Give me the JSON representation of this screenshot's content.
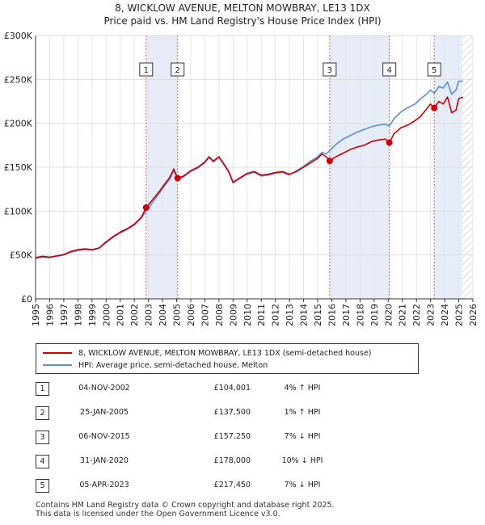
{
  "header": {
    "title_line1": "8, WICKLOW AVENUE, MELTON MOWBRAY, LE13 1DX",
    "title_line2": "Price paid vs. HM Land Registry's House Price Index (HPI)"
  },
  "chart_data": {
    "type": "line",
    "title": "8, WICKLOW AVENUE, MELTON MOWBRAY, LE13 1DX — Price paid vs. HM Land Registry's House Price Index (HPI)",
    "xlim": [
      1995,
      2026
    ],
    "ylim": [
      0,
      300000
    ],
    "x_ticks": [
      "1995",
      "1996",
      "1997",
      "1998",
      "1999",
      "2000",
      "2001",
      "2002",
      "2003",
      "2004",
      "2005",
      "2006",
      "2007",
      "2008",
      "2009",
      "2010",
      "2011",
      "2012",
      "2013",
      "2014",
      "2015",
      "2016",
      "2017",
      "2018",
      "2019",
      "2020",
      "2021",
      "2022",
      "2023",
      "2024",
      "2025",
      "2026"
    ],
    "y_ticks": [
      {
        "value": 0,
        "label": "£0"
      },
      {
        "value": 50000,
        "label": "£50K"
      },
      {
        "value": 100000,
        "label": "£100K"
      },
      {
        "value": 150000,
        "label": "£150K"
      },
      {
        "value": 200000,
        "label": "£200K"
      },
      {
        "value": 250000,
        "label": "£250K"
      },
      {
        "value": 300000,
        "label": "£300K"
      }
    ],
    "grid": true,
    "colors": {
      "price": "#cc0000",
      "hpi": "#5b8fd6",
      "band": "#e6ecf8",
      "vline": "#e06060",
      "future": "#dddddd"
    },
    "series": [
      {
        "name": "8, WICKLOW AVENUE, MELTON MOWBRAY, LE13 1DX (semi-detached house)",
        "color": "#cc0000",
        "points": [
          [
            1995.0,
            47000
          ],
          [
            1995.5,
            48500
          ],
          [
            1996.0,
            47500
          ],
          [
            1996.5,
            49000
          ],
          [
            1997.0,
            50500
          ],
          [
            1997.5,
            54000
          ],
          [
            1998.0,
            56000
          ],
          [
            1998.5,
            57000
          ],
          [
            1999.0,
            56000
          ],
          [
            1999.5,
            58000
          ],
          [
            2000.0,
            65000
          ],
          [
            2000.5,
            71000
          ],
          [
            2001.0,
            76000
          ],
          [
            2001.5,
            80000
          ],
          [
            2002.0,
            85000
          ],
          [
            2002.5,
            93000
          ],
          [
            2002.84,
            104001
          ],
          [
            2003.3,
            113000
          ],
          [
            2003.8,
            123000
          ],
          [
            2004.2,
            132000
          ],
          [
            2004.5,
            138000
          ],
          [
            2004.8,
            148000
          ],
          [
            2005.07,
            137500
          ],
          [
            2005.5,
            140000
          ],
          [
            2006.0,
            146000
          ],
          [
            2006.5,
            150000
          ],
          [
            2007.0,
            156000
          ],
          [
            2007.3,
            162000
          ],
          [
            2007.6,
            157000
          ],
          [
            2008.0,
            162000
          ],
          [
            2008.3,
            155000
          ],
          [
            2008.7,
            145000
          ],
          [
            2009.0,
            133000
          ],
          [
            2009.5,
            138000
          ],
          [
            2010.0,
            143000
          ],
          [
            2010.5,
            145000
          ],
          [
            2011.0,
            141000
          ],
          [
            2011.5,
            142000
          ],
          [
            2012.0,
            144000
          ],
          [
            2012.5,
            145000
          ],
          [
            2013.0,
            142000
          ],
          [
            2013.5,
            145000
          ],
          [
            2014.0,
            150000
          ],
          [
            2014.5,
            155000
          ],
          [
            2015.0,
            160000
          ],
          [
            2015.3,
            165000
          ],
          [
            2015.6,
            162000
          ],
          [
            2015.85,
            157250
          ],
          [
            2016.3,
            162000
          ],
          [
            2016.8,
            166000
          ],
          [
            2017.3,
            170000
          ],
          [
            2017.8,
            173000
          ],
          [
            2018.3,
            175000
          ],
          [
            2018.8,
            179000
          ],
          [
            2019.3,
            181000
          ],
          [
            2019.8,
            182000
          ],
          [
            2020.08,
            178000
          ],
          [
            2020.4,
            188000
          ],
          [
            2020.9,
            195000
          ],
          [
            2021.4,
            198000
          ],
          [
            2021.9,
            203000
          ],
          [
            2022.3,
            208000
          ],
          [
            2022.7,
            216000
          ],
          [
            2023.0,
            222000
          ],
          [
            2023.26,
            217450
          ],
          [
            2023.6,
            225000
          ],
          [
            2023.9,
            222000
          ],
          [
            2024.2,
            230000
          ],
          [
            2024.5,
            212000
          ],
          [
            2024.8,
            215000
          ],
          [
            2025.0,
            228000
          ],
          [
            2025.3,
            230000
          ]
        ]
      },
      {
        "name": "HPI: Average price, semi-detached house, Melton",
        "color": "#5b8fd6",
        "points": [
          [
            1995.0,
            46000
          ],
          [
            1995.5,
            47500
          ],
          [
            1996.0,
            47000
          ],
          [
            1996.5,
            48500
          ],
          [
            1997.0,
            50000
          ],
          [
            1997.5,
            53000
          ],
          [
            1998.0,
            55000
          ],
          [
            1998.5,
            56000
          ],
          [
            1999.0,
            55500
          ],
          [
            1999.5,
            57500
          ],
          [
            2000.0,
            64000
          ],
          [
            2000.5,
            70000
          ],
          [
            2001.0,
            75000
          ],
          [
            2001.5,
            79000
          ],
          [
            2002.0,
            84000
          ],
          [
            2002.5,
            92000
          ],
          [
            2002.84,
            100000
          ],
          [
            2003.3,
            110000
          ],
          [
            2003.8,
            121000
          ],
          [
            2004.2,
            130000
          ],
          [
            2004.5,
            136000
          ],
          [
            2004.8,
            146000
          ],
          [
            2005.07,
            136000
          ],
          [
            2005.5,
            139000
          ],
          [
            2006.0,
            145000
          ],
          [
            2006.5,
            149000
          ],
          [
            2007.0,
            155000
          ],
          [
            2007.3,
            161000
          ],
          [
            2007.6,
            156000
          ],
          [
            2008.0,
            161000
          ],
          [
            2008.3,
            154000
          ],
          [
            2008.7,
            144000
          ],
          [
            2009.0,
            132000
          ],
          [
            2009.5,
            137000
          ],
          [
            2010.0,
            142000
          ],
          [
            2010.5,
            144000
          ],
          [
            2011.0,
            140000
          ],
          [
            2011.5,
            141000
          ],
          [
            2012.0,
            143000
          ],
          [
            2012.5,
            144000
          ],
          [
            2013.0,
            141000
          ],
          [
            2013.5,
            146000
          ],
          [
            2014.0,
            151000
          ],
          [
            2014.5,
            157000
          ],
          [
            2015.0,
            162000
          ],
          [
            2015.3,
            167000
          ],
          [
            2015.6,
            165000
          ],
          [
            2015.85,
            169000
          ],
          [
            2016.3,
            176000
          ],
          [
            2016.8,
            182000
          ],
          [
            2017.3,
            186000
          ],
          [
            2017.8,
            190000
          ],
          [
            2018.3,
            193000
          ],
          [
            2018.8,
            196000
          ],
          [
            2019.3,
            198000
          ],
          [
            2019.8,
            199000
          ],
          [
            2020.08,
            197000
          ],
          [
            2020.4,
            205000
          ],
          [
            2020.9,
            213000
          ],
          [
            2021.4,
            218000
          ],
          [
            2021.9,
            222000
          ],
          [
            2022.3,
            228000
          ],
          [
            2022.7,
            233000
          ],
          [
            2023.0,
            238000
          ],
          [
            2023.26,
            234000
          ],
          [
            2023.6,
            242000
          ],
          [
            2023.9,
            240000
          ],
          [
            2024.2,
            247000
          ],
          [
            2024.5,
            233000
          ],
          [
            2024.8,
            238000
          ],
          [
            2025.0,
            248000
          ],
          [
            2025.3,
            248000
          ]
        ]
      }
    ],
    "sales": [
      {
        "n": "1",
        "x": 2002.84,
        "price": 104001
      },
      {
        "n": "2",
        "x": 2005.07,
        "price": 137500
      },
      {
        "n": "3",
        "x": 2015.85,
        "price": 157250
      },
      {
        "n": "4",
        "x": 2020.08,
        "price": 178000
      },
      {
        "n": "5",
        "x": 2023.26,
        "price": 217450
      }
    ],
    "shaded_bands": [
      [
        2002.84,
        2005.07
      ],
      [
        2015.85,
        2020.08
      ],
      [
        2023.26,
        2025.25
      ]
    ],
    "future_hatch_from": 2025.25
  },
  "legend": {
    "price_label": "8, WICKLOW AVENUE, MELTON MOWBRAY, LE13 1DX (semi-detached house)",
    "hpi_label": "HPI: Average price, semi-detached house, Melton"
  },
  "sales_table": [
    {
      "num": "1",
      "date": "04-NOV-2002",
      "price": "£104,001",
      "hpi": "4% ↑ HPI"
    },
    {
      "num": "2",
      "date": "25-JAN-2005",
      "price": "£137,500",
      "hpi": "1% ↑ HPI"
    },
    {
      "num": "3",
      "date": "06-NOV-2015",
      "price": "£157,250",
      "hpi": "7% ↓ HPI"
    },
    {
      "num": "4",
      "date": "31-JAN-2020",
      "price": "£178,000",
      "hpi": "10% ↓ HPI"
    },
    {
      "num": "5",
      "date": "05-APR-2023",
      "price": "£217,450",
      "hpi": "7% ↓ HPI"
    }
  ],
  "footer": {
    "line1": "Contains HM Land Registry data © Crown copyright and database right 2025.",
    "line2": "This data is licensed under the Open Government Licence v3.0."
  }
}
